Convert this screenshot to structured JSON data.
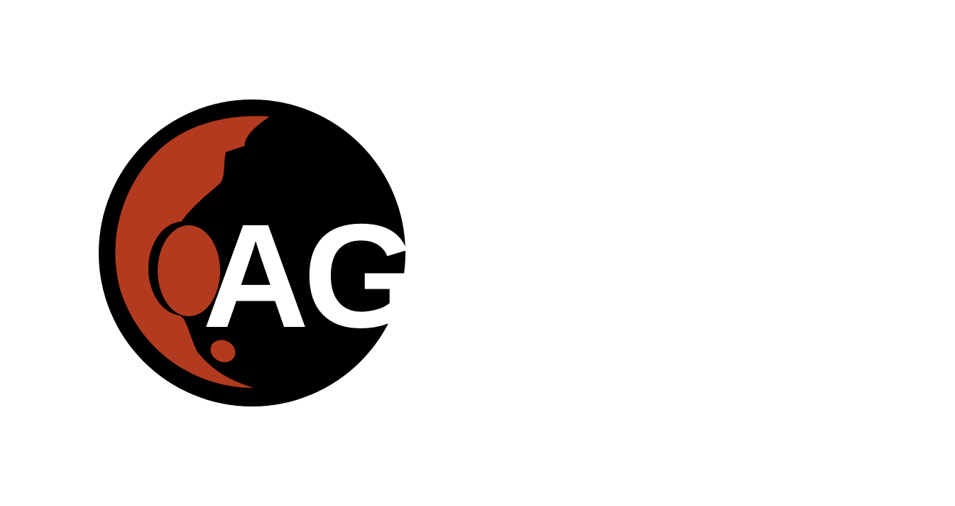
{
  "logo": {
    "text": "AG",
    "colors": {
      "background": "#ffffff",
      "disc": "#000000",
      "crescent": "#b23a1f",
      "text": "#ffffff"
    }
  }
}
